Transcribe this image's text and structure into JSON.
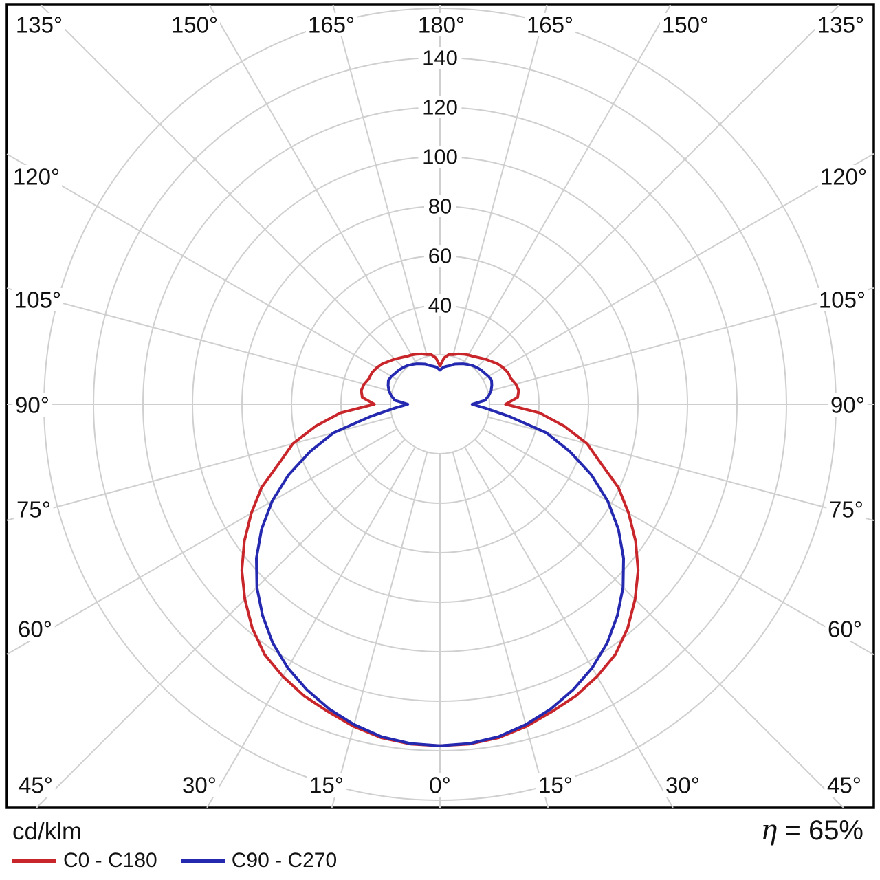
{
  "chart_data": {
    "type": "line",
    "variant": "polar-photometric-distribution",
    "units": "cd/klm",
    "efficiency_symbol": "η",
    "efficiency_text": "= 65%",
    "radial_axis": {
      "min": 0,
      "max": 160,
      "grid_step": 20,
      "labeled_ticks": [
        "40",
        "60",
        "80",
        "100",
        "120",
        "140"
      ]
    },
    "angle_step_deg": 15,
    "angle_labels": [
      "0°",
      "15°",
      "30°",
      "45°",
      "60°",
      "75°",
      "90°",
      "105°",
      "120°",
      "135°",
      "150°",
      "165°",
      "180°"
    ],
    "gamma_step_deg": 5,
    "symmetric_mirror": true,
    "grid_color": "#cfcfcf",
    "frame_color": "#000000",
    "text_color": "#111111",
    "series": [
      {
        "name": "C0 - C180",
        "color": "#c8262b",
        "values": [
          138,
          137.8,
          136.8,
          134.8,
          132.2,
          130,
          127,
          123.5,
          118,
          111.5,
          104.5,
          96.5,
          88,
          79.5,
          69,
          61.5,
          51,
          40.5,
          26.5,
          31.5,
          32.3,
          31.7,
          30.5,
          30.3,
          29.5,
          28.5,
          27,
          25.8,
          24.6,
          23.6,
          23,
          22.3,
          21.6,
          20.8,
          20.4,
          18.8,
          15.5
        ]
      },
      {
        "name": "C90 - C270",
        "color": "#2429b0",
        "values": [
          138,
          137.6,
          136.4,
          134,
          131,
          127.3,
          123,
          117.8,
          111.5,
          104.6,
          96.8,
          88,
          78.3,
          67.5,
          55.8,
          44.5,
          28.5,
          18.5,
          13,
          18.3,
          20,
          21.4,
          22.3,
          23,
          22.6,
          22,
          21.6,
          21,
          20.4,
          19.6,
          18.9,
          18,
          17.3,
          16.2,
          15.6,
          15,
          13.8
        ]
      }
    ]
  },
  "footer": {
    "units_label": "cd/klm",
    "legend": [
      {
        "label": "C0 - C180",
        "color": "#c8262b"
      },
      {
        "label": "C90 - C270",
        "color": "#2429b0"
      }
    ],
    "efficiency_symbol": "η",
    "efficiency_text": "= 65%"
  }
}
